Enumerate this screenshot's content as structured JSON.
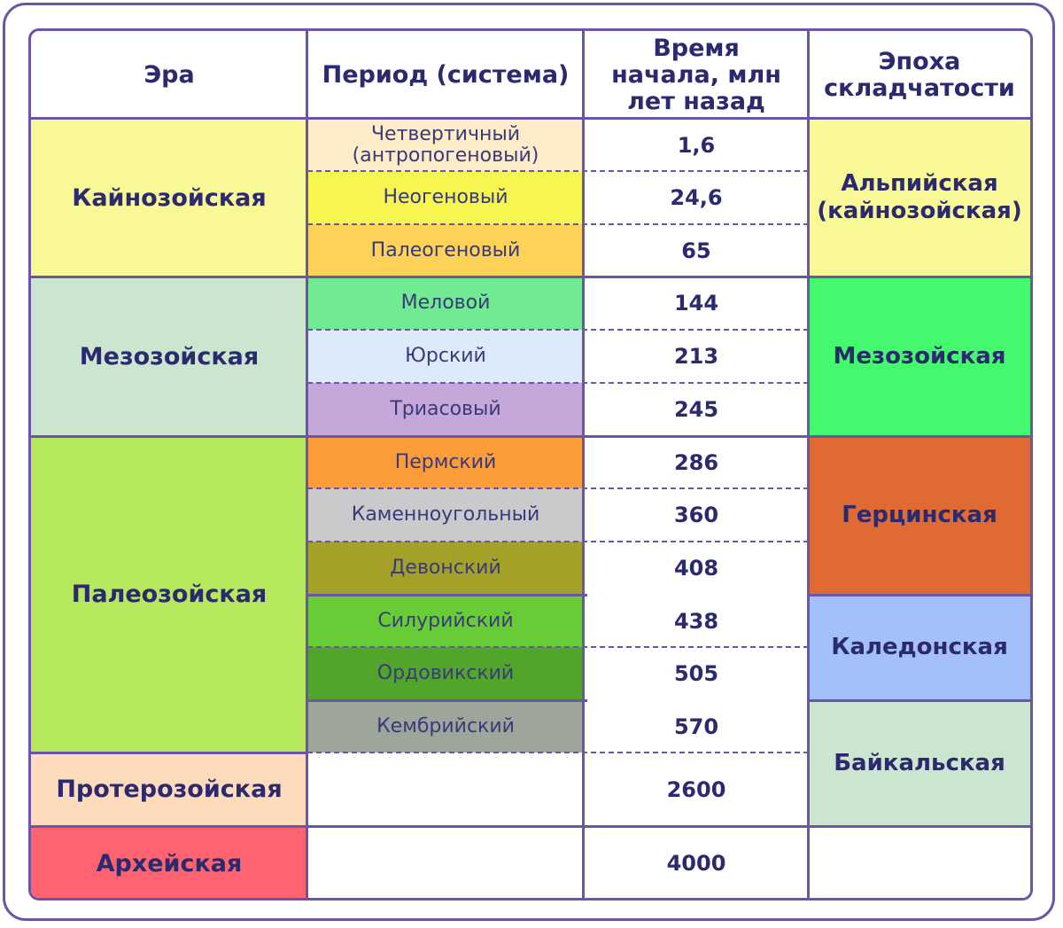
{
  "headers": {
    "era": "Эра",
    "period": "Период (система)",
    "time": "Время начала, млн лет назад",
    "folding": "Эпоха складчатости"
  },
  "eras": [
    {
      "name": "Кайнозойская",
      "color": "#f9f896"
    },
    {
      "name": "Мезозойская",
      "color": "#cce5cf"
    },
    {
      "name": "Палеозойская",
      "color": "#b5e85c"
    },
    {
      "name": "Протерозойская",
      "color": "#fedcbb"
    },
    {
      "name": "Архейская",
      "color": "#ff6370"
    }
  ],
  "periods": [
    {
      "name": "Четвертичный (антропогеновый)",
      "time": "1,6",
      "color": "#ffecc8"
    },
    {
      "name": "Неогеновый",
      "time": "24,6",
      "color": "#f7f650"
    },
    {
      "name": "Палеогеновый",
      "time": "65",
      "color": "#fdd257"
    },
    {
      "name": "Меловой",
      "time": "144",
      "color": "#70eb92"
    },
    {
      "name": "Юрский",
      "time": "213",
      "color": "#ddeafc"
    },
    {
      "name": "Триасовый",
      "time": "245",
      "color": "#c6a7da"
    },
    {
      "name": "Пермский",
      "time": "286",
      "color": "#fc9c3a"
    },
    {
      "name": "Каменноугольный",
      "time": "360",
      "color": "#cacacc"
    },
    {
      "name": "Девонский",
      "time": "408",
      "color": "#a4a128"
    },
    {
      "name": "Силурийский",
      "time": "438",
      "color": "#67cc36"
    },
    {
      "name": "Ордовикский",
      "time": "505",
      "color": "#51a52b"
    },
    {
      "name": "Кембрийский",
      "time": "570",
      "color": "#9ea59a"
    },
    {
      "name": "",
      "time": "2600",
      "color": "#ffffff"
    },
    {
      "name": "",
      "time": "4000",
      "color": "#ffffff"
    }
  ],
  "foldings": [
    {
      "name": "Альпийская (кайнозойская)",
      "color": "#f9f896"
    },
    {
      "name": "Мезозойская",
      "color": "#45f96f"
    },
    {
      "name": "Герцинская",
      "color": "#e06a33"
    },
    {
      "name": "Каледонская",
      "color": "#a4c0fa"
    },
    {
      "name": "Байкальская",
      "color": "#cce5cf"
    },
    {
      "name": "",
      "color": "#ffffff"
    }
  ],
  "colors": {
    "border": "#6a55a8",
    "text": "#2b2a6e"
  }
}
